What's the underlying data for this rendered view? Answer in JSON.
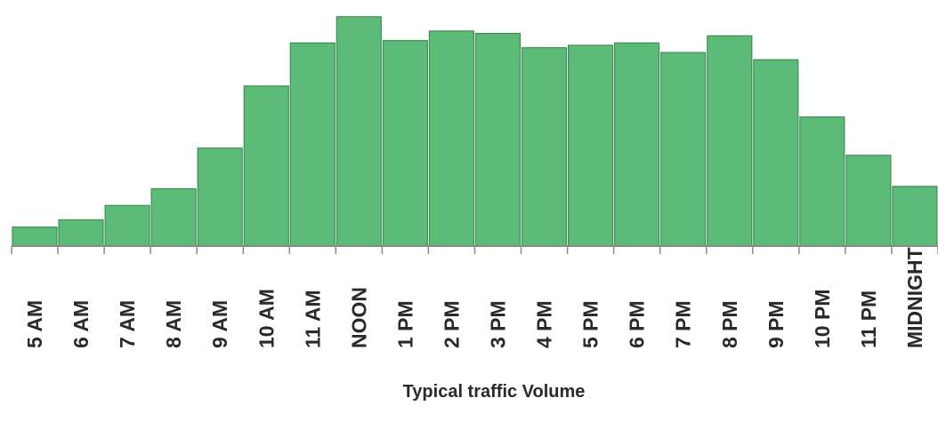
{
  "chart_data": {
    "type": "bar",
    "title": "Typical traffic Volume",
    "xlabel": "",
    "ylabel": "",
    "categories": [
      "5 AM",
      "6 AM",
      "7 AM",
      "8 AM",
      "9 AM",
      "10 AM",
      "11 AM",
      "NOON",
      "1 PM",
      "2 PM",
      "3 PM",
      "4 PM",
      "5 PM",
      "6 PM",
      "7 PM",
      "8 PM",
      "9 PM",
      "10 PM",
      "11 PM",
      "MIDNIGHT"
    ],
    "values": [
      8,
      11,
      17,
      24,
      41,
      67,
      85,
      96,
      86,
      90,
      89,
      83,
      84,
      85,
      81,
      88,
      78,
      54,
      38,
      25
    ],
    "ylim": [
      0,
      100
    ],
    "grid": false,
    "legend": "none",
    "colors": {
      "bar_fill": "#5dbb78",
      "bar_stroke": "#3f8f57",
      "axis": "#8a8a8a",
      "text": "#2a2a2a"
    }
  }
}
